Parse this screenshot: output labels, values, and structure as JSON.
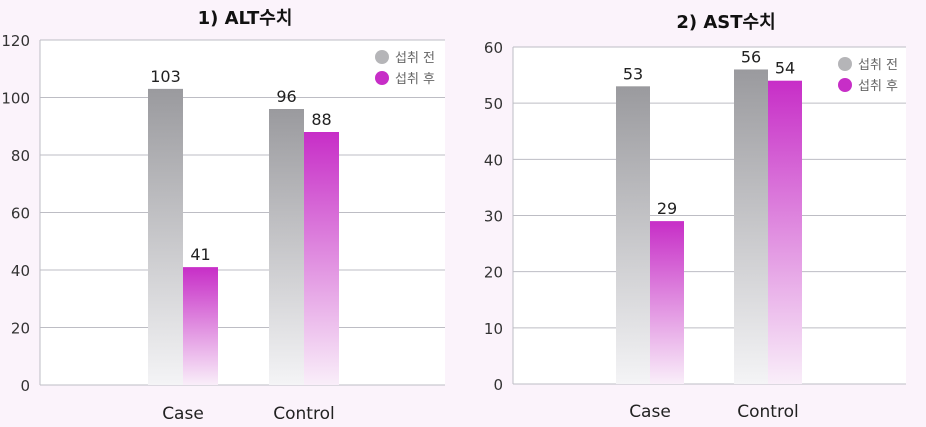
{
  "chart_data": [
    {
      "type": "bar",
      "title": "1) ALT수치",
      "categories": [
        "Case",
        "Control"
      ],
      "series": [
        {
          "name": "섭취 전",
          "values": [
            103,
            96
          ]
        },
        {
          "name": "섭취 후",
          "values": [
            41,
            88
          ]
        }
      ],
      "ylim": [
        0,
        120
      ],
      "yticks": [
        0,
        20,
        40,
        60,
        80,
        100,
        120
      ],
      "grid": true,
      "legend": "top-right",
      "colors": {
        "before": "#9a9a9e",
        "after": "#c72ec7",
        "legend_before": "#b5b5b8"
      }
    },
    {
      "type": "bar",
      "title": "2) AST수치",
      "categories": [
        "Case",
        "Control"
      ],
      "series": [
        {
          "name": "섭취 전",
          "values": [
            53,
            56
          ]
        },
        {
          "name": "섭취 후",
          "values": [
            29,
            54
          ]
        }
      ],
      "ylim": [
        0,
        60
      ],
      "yticks": [
        0,
        10,
        20,
        30,
        40,
        50,
        60
      ],
      "grid": true,
      "legend": "top-right",
      "colors": {
        "before": "#9a9a9e",
        "after": "#c72ec7",
        "legend_before": "#b5b5b8"
      }
    }
  ]
}
